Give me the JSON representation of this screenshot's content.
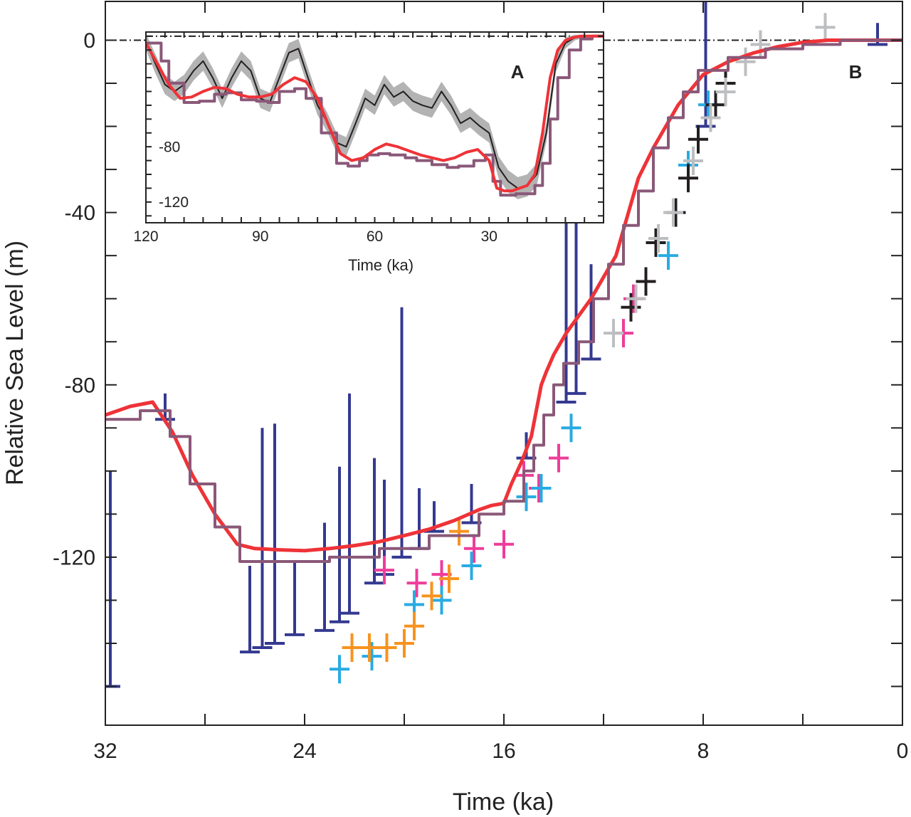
{
  "chart_data": [
    {
      "panel": "B",
      "type": "line",
      "xlabel": "Time (ka)",
      "ylabel": "Relative Sea Level (m)",
      "xlim": [
        32,
        0
      ],
      "ylim": [
        -159,
        9
      ],
      "xticks": [
        32,
        24,
        16,
        8,
        0
      ],
      "yticks": [
        0,
        -40,
        -80,
        -120
      ],
      "reference_line_y": 0,
      "series": [
        {
          "style": "model-curve-red",
          "color": "#ee3338",
          "x": [
            32,
            31,
            30.1,
            29.3,
            28.5,
            27.6,
            26.7,
            26,
            25,
            24,
            23,
            22,
            21,
            20,
            19,
            18,
            17,
            16.5,
            16,
            15.7,
            15.3,
            14.9,
            14.7,
            14.5,
            14.3,
            14,
            13.5,
            13,
            12.5,
            12,
            11.5,
            11,
            10.6,
            10,
            9,
            8,
            7,
            6,
            5,
            4,
            3,
            2,
            1,
            0
          ],
          "y": [
            -87,
            -85,
            -84,
            -91,
            -101,
            -110,
            -117,
            -118,
            -118.3,
            -118.5,
            -118,
            -117.3,
            -116.4,
            -115,
            -113.5,
            -111.5,
            -109,
            -108,
            -107.5,
            -103,
            -98,
            -92,
            -86,
            -80,
            -77,
            -73,
            -68,
            -64,
            -60,
            -55,
            -50,
            -40,
            -32,
            -25,
            -15,
            -8,
            -5,
            -3,
            -1.5,
            -0.5,
            0,
            0,
            0,
            0
          ]
        },
        {
          "style": "stepped-curve-mauve",
          "color": "#8a5878",
          "x": [
            32,
            31,
            30.6,
            30,
            29.4,
            28.6,
            27.6,
            26.6,
            24.5,
            23,
            21,
            19,
            17,
            16,
            15.2,
            14.8,
            14.4,
            14,
            13.6,
            13,
            12.4,
            11.8,
            11.2,
            10.6,
            10,
            9.4,
            8.8,
            8.2,
            7,
            5.5,
            4,
            2.5,
            1,
            0
          ],
          "y": [
            -88,
            -88,
            -86,
            -86,
            -92,
            -103,
            -113,
            -121,
            -121,
            -120,
            -118,
            -115,
            -110,
            -107,
            -100,
            -94,
            -87,
            -80,
            -75,
            -70,
            -60,
            -52,
            -43,
            -35,
            -25,
            -18,
            -12,
            -7,
            -4,
            -2,
            -1,
            0,
            0,
            0
          ]
        }
      ],
      "observation_groups": [
        {
          "color": "#343990",
          "style": "bars-and-crosses",
          "points": [
            {
              "x": 31.8,
              "ymin": -150,
              "ymax": -100
            },
            {
              "x": 29.6,
              "ymin": -88,
              "ymax": -82
            },
            {
              "x": 26.2,
              "ymin": -142,
              "ymax": -122
            },
            {
              "x": 25.7,
              "ymin": -141,
              "ymax": -90
            },
            {
              "x": 25.2,
              "ymin": -140,
              "ymax": -89
            },
            {
              "x": 24.4,
              "ymin": -138,
              "ymax": -121
            },
            {
              "x": 23.2,
              "ymin": -137,
              "ymax": -112
            },
            {
              "x": 22.6,
              "ymin": -135,
              "ymax": -99
            },
            {
              "x": 22.2,
              "ymin": -133,
              "ymax": -82
            },
            {
              "x": 21.2,
              "ymin": -126,
              "ymax": -97
            },
            {
              "x": 20.8,
              "ymin": -124,
              "ymax": -102
            },
            {
              "x": 20.1,
              "ymin": -120,
              "ymax": -62
            },
            {
              "x": 19.4,
              "ymin": -118,
              "ymax": -104
            },
            {
              "x": 18.8,
              "ymin": -114,
              "ymax": -107
            },
            {
              "x": 17.3,
              "ymin": -112,
              "ymax": -103
            },
            {
              "x": 15.1,
              "ymin": -97,
              "ymax": -91
            },
            {
              "x": 13.5,
              "ymin": -84,
              "ymax": -36
            },
            {
              "x": 13.1,
              "ymin": -82,
              "ymax": -36
            },
            {
              "x": 12.5,
              "ymin": -74,
              "ymax": -52
            },
            {
              "x": 7.9,
              "ymin": -20,
              "ymax": 10
            },
            {
              "x": 1,
              "ymin": -1,
              "ymax": 4
            }
          ]
        },
        {
          "color": "#ee3d9a",
          "style": "crosses",
          "points": [
            {
              "x": 20.8,
              "y": -123
            },
            {
              "x": 19.5,
              "y": -126
            },
            {
              "x": 18.5,
              "y": -124
            },
            {
              "x": 17.2,
              "y": -118
            },
            {
              "x": 16,
              "y": -117
            },
            {
              "x": 15.2,
              "y": -101
            },
            {
              "x": 14.6,
              "y": -104
            },
            {
              "x": 13.8,
              "y": -97
            },
            {
              "x": 11.2,
              "y": -68
            },
            {
              "x": 10.8,
              "y": -60
            }
          ]
        },
        {
          "color": "#29abe2",
          "style": "crosses",
          "points": [
            {
              "x": 22.6,
              "y": -146
            },
            {
              "x": 21.3,
              "y": -143
            },
            {
              "x": 19.6,
              "y": -131
            },
            {
              "x": 18.5,
              "y": -130
            },
            {
              "x": 17.3,
              "y": -122
            },
            {
              "x": 15.1,
              "y": -106
            },
            {
              "x": 14.5,
              "y": -104
            },
            {
              "x": 13.3,
              "y": -90
            },
            {
              "x": 9.4,
              "y": -50
            },
            {
              "x": 8.6,
              "y": -29
            },
            {
              "x": 7.8,
              "y": -15
            }
          ]
        },
        {
          "color": "#f7931e",
          "style": "crosses",
          "points": [
            {
              "x": 22.1,
              "y": -141
            },
            {
              "x": 21.4,
              "y": -141
            },
            {
              "x": 20.7,
              "y": -141
            },
            {
              "x": 20,
              "y": -140
            },
            {
              "x": 19.6,
              "y": -136
            },
            {
              "x": 18.9,
              "y": -129
            },
            {
              "x": 18.2,
              "y": -125
            },
            {
              "x": 17.8,
              "y": -114
            }
          ]
        },
        {
          "color": "#231f20",
          "style": "crosses",
          "points": [
            {
              "x": 10.9,
              "y": -62
            },
            {
              "x": 10.3,
              "y": -56
            },
            {
              "x": 9.9,
              "y": -47
            },
            {
              "x": 9.1,
              "y": -40
            },
            {
              "x": 8.6,
              "y": -32
            },
            {
              "x": 8.2,
              "y": -23
            },
            {
              "x": 7.5,
              "y": -15
            },
            {
              "x": 7.1,
              "y": -10
            }
          ]
        },
        {
          "color": "#bcbec0",
          "style": "crosses",
          "points": [
            {
              "x": 11.6,
              "y": -68
            },
            {
              "x": 10.7,
              "y": -60
            },
            {
              "x": 9.8,
              "y": -46
            },
            {
              "x": 9.2,
              "y": -40
            },
            {
              "x": 8.4,
              "y": -28
            },
            {
              "x": 7.7,
              "y": -18
            },
            {
              "x": 7.1,
              "y": -12
            },
            {
              "x": 6.3,
              "y": -5
            },
            {
              "x": 5.7,
              "y": -1
            },
            {
              "x": 3.1,
              "y": 3
            }
          ]
        }
      ]
    },
    {
      "panel": "A",
      "type": "line",
      "xlabel": "Time (ka)",
      "xlim": [
        120,
        0
      ],
      "ylim": [
        -135,
        3
      ],
      "xticks": [
        120,
        90,
        60,
        30
      ],
      "yticks": [
        -80,
        -120
      ],
      "reference_line_y": 0,
      "series": [
        {
          "style": "band-gray",
          "color": "#b3b3b3",
          "x": [
            120,
            117.5,
            115,
            112.5,
            110,
            107.5,
            105,
            102.5,
            100,
            97.5,
            95,
            92.5,
            90,
            87.5,
            85,
            82.5,
            80,
            77.5,
            75,
            72.5,
            70,
            67.5,
            65,
            62.5,
            60,
            57.5,
            55,
            52.5,
            50,
            47.5,
            45,
            42.5,
            40,
            37.5,
            35,
            32.5,
            30,
            27.5,
            25,
            22.5,
            20,
            17.5,
            15,
            12.5,
            10,
            7.5,
            5,
            2.5,
            0
          ],
          "ymid": [
            -4,
            -20,
            -35,
            -40,
            -35,
            -25,
            -18,
            -30,
            -45,
            -30,
            -18,
            -25,
            -45,
            -48,
            -30,
            -12,
            -9,
            -30,
            -50,
            -62,
            -77,
            -80,
            -63,
            -45,
            -50,
            -35,
            -44,
            -40,
            -47,
            -50,
            -52,
            -40,
            -50,
            -63,
            -59,
            -65,
            -70,
            -95,
            -105,
            -110,
            -108,
            -100,
            -70,
            -20,
            -5,
            -1,
            0,
            0,
            0
          ],
          "halfwidth": [
            6,
            7,
            7,
            7,
            7,
            7,
            7,
            7,
            7,
            7,
            7,
            7,
            7,
            7,
            7,
            7,
            7,
            7,
            7,
            7,
            7,
            7,
            7,
            7,
            7,
            7,
            7,
            7,
            7,
            7,
            7,
            7,
            7,
            7,
            7,
            7,
            7,
            8,
            8,
            8,
            8,
            8,
            7,
            6,
            4,
            2,
            1,
            0,
            0
          ]
        },
        {
          "style": "mean-black",
          "color": "#231f20",
          "x": [
            120,
            117.5,
            115,
            112.5,
            110,
            107.5,
            105,
            102.5,
            100,
            97.5,
            95,
            92.5,
            90,
            87.5,
            85,
            82.5,
            80,
            77.5,
            75,
            72.5,
            70,
            67.5,
            65,
            62.5,
            60,
            57.5,
            55,
            52.5,
            50,
            47.5,
            45,
            42.5,
            40,
            37.5,
            35,
            32.5,
            30,
            27.5,
            25,
            22.5,
            20,
            17.5,
            15,
            12.5,
            10,
            7.5,
            5,
            2.5,
            0
          ],
          "y": [
            -4,
            -20,
            -35,
            -40,
            -35,
            -25,
            -18,
            -30,
            -45,
            -30,
            -18,
            -25,
            -45,
            -48,
            -30,
            -12,
            -9,
            -30,
            -50,
            -62,
            -77,
            -80,
            -63,
            -45,
            -50,
            -35,
            -44,
            -40,
            -47,
            -50,
            -52,
            -40,
            -50,
            -63,
            -59,
            -65,
            -70,
            -95,
            -105,
            -110,
            -108,
            -100,
            -70,
            -20,
            -5,
            -1,
            0,
            0,
            0
          ]
        },
        {
          "style": "stepped-curve-mauve",
          "color": "#8a5878",
          "x": [
            120,
            116,
            114,
            110,
            106,
            102,
            99,
            95,
            91,
            88,
            85,
            81,
            78,
            74,
            70,
            67,
            64,
            62,
            59,
            56,
            52,
            49,
            45,
            41,
            38,
            34,
            31,
            29,
            27,
            25,
            23,
            21,
            18,
            16,
            14,
            12,
            9,
            6,
            3,
            0
          ],
          "y": [
            -5,
            -18,
            -34,
            -48,
            -47,
            -42,
            -41,
            -46,
            -47,
            -48,
            -40,
            -38,
            -45,
            -70,
            -92,
            -94,
            -90,
            -86,
            -85,
            -86,
            -88,
            -90,
            -93,
            -95,
            -94,
            -90,
            -86,
            -105,
            -115,
            -115,
            -114,
            -114,
            -108,
            -92,
            -60,
            -30,
            -10,
            -2,
            0,
            0
          ]
        },
        {
          "style": "model-curve-red",
          "color": "#ee3338",
          "x": [
            120,
            117,
            114,
            111,
            108,
            105,
            102,
            99,
            96,
            93,
            90,
            87,
            84,
            81,
            78,
            75,
            72,
            69,
            66,
            63,
            60,
            57,
            54,
            51,
            48,
            45,
            42,
            39,
            36,
            33,
            30,
            28,
            26,
            24,
            22,
            20,
            18,
            16,
            14,
            12,
            10,
            8,
            6,
            4,
            2,
            0
          ],
          "y": [
            -5,
            -20,
            -35,
            -45,
            -44,
            -40,
            -37,
            -38,
            -42,
            -44,
            -44,
            -42,
            -35,
            -30,
            -33,
            -45,
            -65,
            -85,
            -90,
            -88,
            -82,
            -78,
            -80,
            -83,
            -86,
            -88,
            -90,
            -88,
            -84,
            -82,
            -90,
            -110,
            -112,
            -112,
            -110,
            -108,
            -100,
            -70,
            -30,
            -10,
            -3,
            -1,
            0,
            0,
            0,
            0
          ]
        }
      ]
    }
  ],
  "inset_label": "A",
  "main_label": "B",
  "axis_labels": {
    "main_x": "Time (ka)",
    "main_y": "Relative Sea Level (m)",
    "inset_x": "Time (ka)"
  }
}
